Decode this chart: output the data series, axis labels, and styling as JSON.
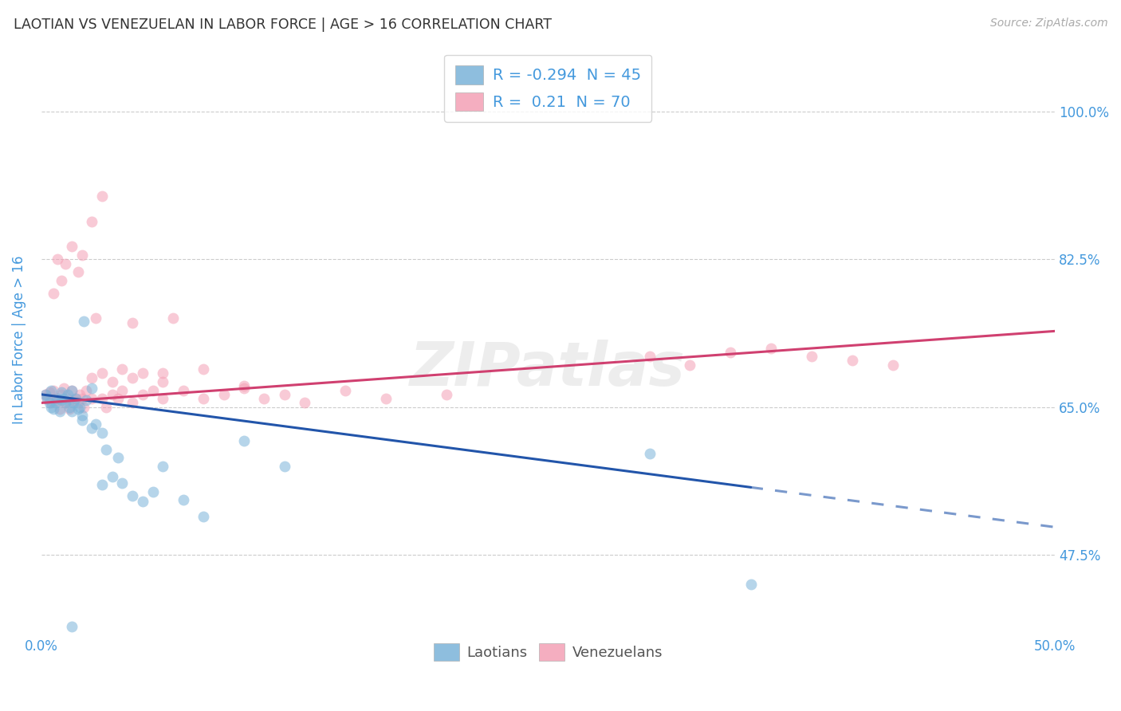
{
  "title": "LAOTIAN VS VENEZUELAN IN LABOR FORCE | AGE > 16 CORRELATION CHART",
  "source": "Source: ZipAtlas.com",
  "ylabel": "In Labor Force | Age > 16",
  "ytick_labels": [
    "47.5%",
    "65.0%",
    "82.5%",
    "100.0%"
  ],
  "ytick_values": [
    0.475,
    0.65,
    0.825,
    1.0
  ],
  "xlim": [
    0.0,
    0.5
  ],
  "ylim": [
    0.38,
    1.08
  ],
  "r_laotian": -0.294,
  "n_laotian": 45,
  "r_venezuelan": 0.21,
  "n_venezuelan": 70,
  "laotian_color": "#7ab3d9",
  "venezuelan_color": "#f4a0b5",
  "laotian_line_color": "#2255aa",
  "venezuelan_line_color": "#d04070",
  "background_color": "#ffffff",
  "grid_color": "#cccccc",
  "title_color": "#333333",
  "axis_label_color": "#4499dd",
  "laotian_x": [
    0.002,
    0.003,
    0.004,
    0.005,
    0.005,
    0.006,
    0.007,
    0.008,
    0.009,
    0.01,
    0.01,
    0.011,
    0.012,
    0.013,
    0.014,
    0.015,
    0.015,
    0.016,
    0.017,
    0.018,
    0.019,
    0.02,
    0.021,
    0.022,
    0.025,
    0.027,
    0.03,
    0.032,
    0.035,
    0.038,
    0.04,
    0.045,
    0.05,
    0.055,
    0.06,
    0.07,
    0.08,
    0.1,
    0.12,
    0.02,
    0.025,
    0.03,
    0.3,
    0.35,
    0.015
  ],
  "laotian_y": [
    0.665,
    0.66,
    0.655,
    0.65,
    0.67,
    0.648,
    0.655,
    0.66,
    0.645,
    0.658,
    0.668,
    0.66,
    0.655,
    0.665,
    0.65,
    0.67,
    0.645,
    0.655,
    0.66,
    0.648,
    0.65,
    0.64,
    0.752,
    0.658,
    0.672,
    0.63,
    0.62,
    0.6,
    0.568,
    0.59,
    0.56,
    0.545,
    0.538,
    0.55,
    0.58,
    0.54,
    0.52,
    0.61,
    0.58,
    0.635,
    0.625,
    0.558,
    0.595,
    0.44,
    0.39
  ],
  "venezuelan_x": [
    0.002,
    0.003,
    0.004,
    0.005,
    0.006,
    0.007,
    0.008,
    0.009,
    0.01,
    0.011,
    0.012,
    0.013,
    0.014,
    0.015,
    0.016,
    0.017,
    0.018,
    0.019,
    0.02,
    0.021,
    0.022,
    0.025,
    0.027,
    0.03,
    0.032,
    0.035,
    0.038,
    0.04,
    0.045,
    0.05,
    0.055,
    0.06,
    0.065,
    0.07,
    0.08,
    0.09,
    0.1,
    0.11,
    0.12,
    0.13,
    0.15,
    0.17,
    0.2,
    0.006,
    0.008,
    0.01,
    0.012,
    0.015,
    0.018,
    0.02,
    0.025,
    0.03,
    0.035,
    0.04,
    0.045,
    0.05,
    0.06,
    0.3,
    0.32,
    0.34,
    0.36,
    0.38,
    0.4,
    0.42,
    0.025,
    0.03,
    0.045,
    0.06,
    0.08,
    0.1
  ],
  "venezuelan_y": [
    0.665,
    0.66,
    0.668,
    0.655,
    0.67,
    0.66,
    0.658,
    0.648,
    0.665,
    0.672,
    0.655,
    0.66,
    0.648,
    0.67,
    0.658,
    0.66,
    0.655,
    0.665,
    0.66,
    0.65,
    0.67,
    0.66,
    0.755,
    0.66,
    0.65,
    0.665,
    0.66,
    0.67,
    0.655,
    0.665,
    0.67,
    0.66,
    0.755,
    0.67,
    0.66,
    0.665,
    0.672,
    0.66,
    0.665,
    0.655,
    0.67,
    0.66,
    0.665,
    0.785,
    0.825,
    0.8,
    0.82,
    0.84,
    0.81,
    0.83,
    0.685,
    0.69,
    0.68,
    0.695,
    0.685,
    0.69,
    0.68,
    0.71,
    0.7,
    0.715,
    0.72,
    0.71,
    0.705,
    0.7,
    0.87,
    0.9,
    0.75,
    0.69,
    0.695,
    0.675
  ],
  "marker_size": 100,
  "marker_alpha": 0.55,
  "line_width": 2.2,
  "legend_box_color": "#ffffff",
  "legend_edge_color": "#cccccc"
}
